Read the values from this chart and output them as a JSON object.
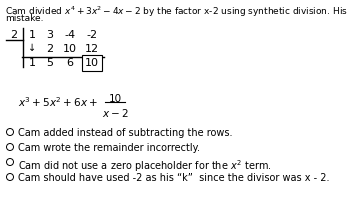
{
  "title_line1": "Cam divided $x^4 + 3x^2 - 4x - 2$ by the factor x-2 using synthetic division. His work is shown. Identify his",
  "title_line2": "mistake.",
  "synth_k": "2",
  "synth_row1": [
    "1",
    "3",
    "-4",
    "-2"
  ],
  "synth_row2_arrow": "↓",
  "synth_row2": [
    "2",
    "10",
    "12"
  ],
  "synth_row3": [
    "1",
    "5",
    "6",
    "10"
  ],
  "options": [
    "Cam added instead of subtracting the rows.",
    "Cam wrote the remainder incorrectly.",
    "Cam did not use a zero placeholder for the $x^2$ term.",
    "Cam should have used -2 as his “k”  since the divisor was x - 2."
  ],
  "bg_color": "#ffffff",
  "text_color": "#000000",
  "fs_title": 6.5,
  "fs_synth": 8.0,
  "fs_expr": 7.5,
  "fs_opt": 7.0
}
